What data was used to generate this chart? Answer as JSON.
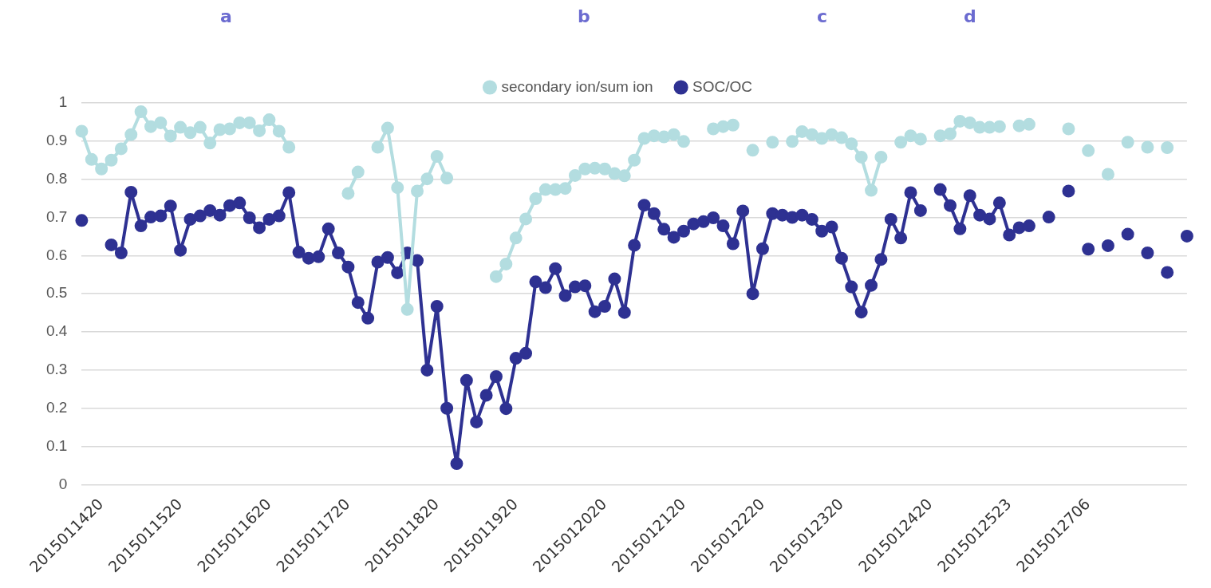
{
  "chart_data": {
    "type": "line",
    "annotations": [
      "a",
      "b",
      "c",
      "d"
    ],
    "categories": [
      null,
      null,
      "2015011420",
      null,
      null,
      null,
      null,
      null,
      null,
      null,
      "2015011520",
      null,
      null,
      null,
      null,
      null,
      null,
      null,
      null,
      "2015011620",
      null,
      null,
      null,
      null,
      null,
      null,
      null,
      "2015011720",
      null,
      null,
      null,
      null,
      null,
      null,
      null,
      null,
      "2015011820",
      null,
      null,
      null,
      null,
      null,
      null,
      null,
      "2015011920",
      null,
      null,
      null,
      null,
      null,
      null,
      null,
      null,
      "2015012020",
      null,
      null,
      null,
      null,
      null,
      null,
      null,
      "2015012120",
      null,
      null,
      null,
      null,
      null,
      null,
      null,
      "2015012220",
      null,
      null,
      null,
      null,
      null,
      null,
      null,
      "2015012320",
      null,
      null,
      null,
      null,
      null,
      null,
      null,
      null,
      "2015012420",
      null,
      null,
      null,
      null,
      null,
      null,
      null,
      "2015012523",
      null,
      null,
      null,
      null,
      null,
      null,
      null,
      "2015012706",
      null,
      null,
      null,
      null,
      null,
      null,
      null,
      null,
      null,
      null
    ],
    "series": [
      {
        "name": "secondary ion/sum ion",
        "color": "#b3dde0",
        "values": [
          0.926,
          0.852,
          0.827,
          0.85,
          0.88,
          0.917,
          0.977,
          0.938,
          0.948,
          0.913,
          0.936,
          0.922,
          0.936,
          0.895,
          0.93,
          0.932,
          0.948,
          0.948,
          0.927,
          0.956,
          0.926,
          0.884,
          null,
          null,
          null,
          null,
          null,
          0.763,
          0.819,
          null,
          0.884,
          0.934,
          0.778,
          0.459,
          0.769,
          0.801,
          0.86,
          0.803,
          null,
          null,
          null,
          null,
          0.545,
          0.578,
          0.646,
          0.696,
          0.749,
          0.773,
          0.773,
          0.776,
          0.81,
          0.827,
          0.829,
          0.827,
          0.815,
          0.809,
          0.85,
          0.907,
          0.914,
          0.911,
          0.917,
          0.899,
          null,
          null,
          0.932,
          0.938,
          0.942,
          null,
          0.876,
          null,
          0.897,
          null,
          0.899,
          0.925,
          0.917,
          0.907,
          0.917,
          0.909,
          0.893,
          0.858,
          0.771,
          0.858,
          null,
          0.897,
          0.914,
          0.905,
          null,
          0.914,
          0.919,
          0.952,
          0.948,
          0.936,
          0.936,
          0.938,
          null,
          0.94,
          0.944,
          null,
          null,
          null,
          0.932,
          null,
          0.875,
          null,
          0.813,
          null,
          0.897,
          null,
          0.884,
          null,
          0.883,
          null,
          null
        ]
      },
      {
        "name": "SOC/OC",
        "color": "#2e3192",
        "values": [
          0.692,
          null,
          null,
          0.628,
          0.607,
          0.766,
          0.678,
          0.701,
          0.704,
          0.73,
          0.614,
          0.695,
          0.704,
          0.718,
          0.706,
          0.731,
          0.738,
          0.699,
          0.673,
          0.695,
          0.704,
          0.765,
          0.609,
          0.593,
          0.597,
          0.67,
          0.607,
          0.57,
          0.477,
          0.436,
          0.583,
          0.595,
          0.555,
          0.607,
          0.587,
          0.3,
          0.467,
          0.2,
          0.055,
          0.273,
          0.164,
          0.234,
          0.283,
          0.199,
          0.331,
          0.344,
          0.531,
          0.516,
          0.566,
          0.495,
          0.518,
          0.521,
          0.453,
          0.467,
          0.539,
          0.451,
          0.627,
          0.732,
          0.71,
          0.669,
          0.648,
          0.664,
          0.683,
          0.689,
          0.699,
          0.678,
          0.631,
          0.717,
          0.5,
          0.618,
          0.71,
          0.706,
          0.7,
          0.706,
          0.695,
          0.664,
          0.675,
          0.593,
          0.518,
          0.452,
          0.522,
          0.59,
          0.695,
          0.646,
          0.765,
          0.718,
          null,
          0.773,
          0.731,
          0.67,
          0.757,
          0.706,
          0.696,
          0.738,
          0.654,
          0.673,
          0.678,
          null,
          0.701,
          null,
          0.769,
          null,
          0.617,
          null,
          0.626,
          null,
          0.656,
          null,
          0.607,
          null,
          0.556,
          null,
          0.651
        ]
      }
    ],
    "ylim": [
      0,
      1
    ],
    "yticks": [
      0,
      0.1,
      0.2,
      0.3,
      0.4,
      0.5,
      0.6,
      0.7,
      0.8,
      0.9,
      1
    ],
    "grid": "y",
    "legend": "top",
    "marker": "circle",
    "line_style": "solid"
  }
}
